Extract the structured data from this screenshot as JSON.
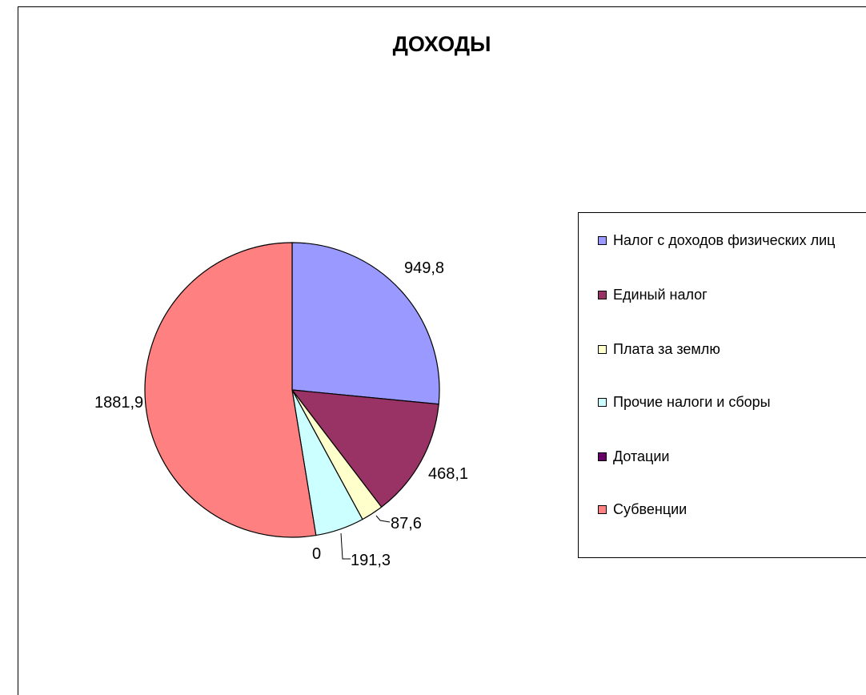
{
  "chart_data": {
    "type": "pie",
    "title": "ДОХОДЫ",
    "series": [
      {
        "name": "Налог с доходов физических лиц",
        "value": 949.8,
        "label": "949,8",
        "color": "#9999FF"
      },
      {
        "name": "Единый налог",
        "value": 468.1,
        "label": "468,1",
        "color": "#993366"
      },
      {
        "name": "Плата за землю",
        "value": 87.6,
        "label": "87,6",
        "color": "#FFFFCC"
      },
      {
        "name": "Прочие налоги и сборы",
        "value": 191.3,
        "label": "191,3",
        "color": "#CCFFFF"
      },
      {
        "name": "Дотации",
        "value": 0,
        "label": "0",
        "color": "#660066"
      },
      {
        "name": "Субвенции",
        "value": 1881.9,
        "label": "1881,9",
        "color": "#FF8080"
      }
    ],
    "legend_position": "right",
    "start_angle_deg": 0,
    "direction": "clockwise"
  }
}
